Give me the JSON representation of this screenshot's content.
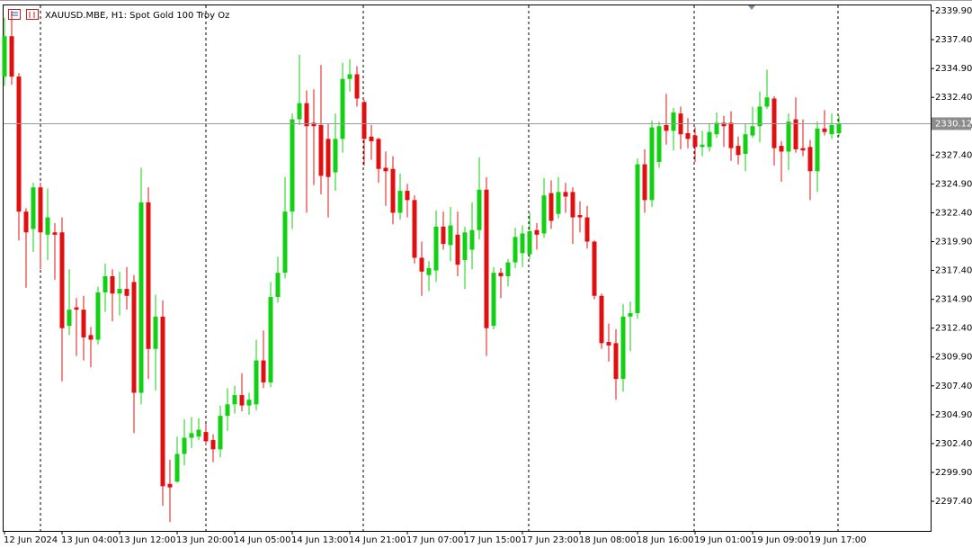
{
  "chart_data": {
    "type": "candlestick",
    "title": "XAUUSD.MBE, H1:  Spot Gold 100 Troy Oz",
    "categories": [
      "12 Jun 2024",
      null,
      null,
      null,
      null,
      null,
      null,
      null,
      "13 Jun 04:00",
      null,
      null,
      null,
      null,
      null,
      null,
      null,
      "13 Jun 12:00",
      null,
      null,
      null,
      null,
      null,
      null,
      null,
      "13 Jun 20:00",
      null,
      null,
      null,
      null,
      null,
      null,
      null,
      "14 Jun 05:00",
      null,
      null,
      null,
      null,
      null,
      null,
      null,
      "14 Jun 13:00",
      null,
      null,
      null,
      null,
      null,
      null,
      null,
      "14 Jun 21:00",
      null,
      null,
      null,
      null,
      null,
      null,
      null,
      "17 Jun 07:00",
      null,
      null,
      null,
      null,
      null,
      null,
      null,
      "17 Jun 15:00",
      null,
      null,
      null,
      null,
      null,
      null,
      null,
      "17 Jun 23:00",
      null,
      null,
      null,
      null,
      null,
      null,
      null,
      "18 Jun 08:00",
      null,
      null,
      null,
      null,
      null,
      null,
      null,
      "18 Jun 16:00",
      null,
      null,
      null,
      null,
      null,
      null,
      null,
      "19 Jun 01:00",
      null,
      null,
      null,
      null,
      null,
      null,
      null,
      "19 Jun 09:00",
      null,
      null,
      null,
      null,
      null,
      null,
      null,
      "19 Jun 17:00",
      null,
      null,
      null,
      null
    ],
    "open": [
      2334.2,
      2337.7,
      2334.2,
      2322.5,
      2321.0,
      2324.6,
      2320.5,
      2320.7,
      2320.7,
      2312.6,
      2314.2,
      2314.0,
      2311.8,
      2311.4,
      2315.5,
      2316.9,
      2315.4,
      2315.8,
      2316.4,
      2306.8,
      2323.3,
      2310.6,
      2313.4,
      2298.9,
      2299.1,
      2301.5,
      2302.9,
      2303.0,
      2303.4,
      2302.7,
      2301.9,
      2304.8,
      2305.8,
      2306.6,
      2305.7,
      2305.8,
      2309.6,
      2307.7,
      2315.1,
      2317.2,
      2322.5,
      2330.5,
      2331.9,
      2330.2,
      2330.0,
      2328.8,
      2325.9,
      2328.8,
      2334.0,
      2334.4,
      2332.0,
      2329.0,
      2328.8,
      2326.3,
      2326.2,
      2322.4,
      2324.3,
      2323.5,
      2318.5,
      2317.0,
      2317.4,
      2321.2,
      2319.6,
      2320.5,
      2318.3,
      2319.2,
      2320.9,
      2324.4,
      2312.6,
      2317.2,
      2316.9,
      2318.1,
      2318.9,
      2318.8,
      2320.9,
      2320.6,
      2324.1,
      2322.3,
      2324.2,
      2324.2,
      2322.2,
      2322.0,
      2319.9,
      2315.2,
      2311.2,
      2311.1,
      2308.0,
      2313.4,
      2313.7,
      2326.6,
      2323.5,
      2326.8,
      2330.0,
      2329.5,
      2331.0,
      2329.3,
      2329.1,
      2328.1,
      2328.1,
      2329.2,
      2330.2,
      2330.2,
      2328.2,
      2327.5,
      2329.1,
      2329.9,
      2331.6,
      2332.3,
      2328.2,
      2327.7,
      2330.5,
      2328.0,
      2328.1,
      2326.0,
      2329.7,
      2329.2,
      2329.3
    ],
    "high": [
      2339.3,
      2339.9,
      2334.5,
      2322.8,
      2325.0,
      2325.0,
      2324.5,
      2321.5,
      2322.0,
      2317.5,
      2315.0,
      2315.2,
      2312.5,
      2316.0,
      2318.0,
      2317.5,
      2317.3,
      2317.7,
      2317.0,
      2326.3,
      2324.6,
      2315.3,
      2314.8,
      2301.0,
      2303.0,
      2304.5,
      2304.7,
      2304.6,
      2304.1,
      2303.2,
      2305.7,
      2307.2,
      2307.4,
      2308.5,
      2306.8,
      2311.4,
      2312.2,
      2316.4,
      2318.6,
      2325.5,
      2331.0,
      2336.1,
      2333.0,
      2333.1,
      2335.2,
      2330.1,
      2331.0,
      2335.4,
      2335.7,
      2335.1,
      2332.2,
      2330.0,
      2328.9,
      2327.7,
      2327.3,
      2325.8,
      2324.9,
      2323.9,
      2319.9,
      2318.2,
      2322.6,
      2322.5,
      2322.9,
      2322.5,
      2321.2,
      2323.3,
      2327.2,
      2325.5,
      2317.7,
      2317.6,
      2318.4,
      2321.1,
      2321.3,
      2322.4,
      2321.5,
      2325.4,
      2325.2,
      2325.5,
      2325.0,
      2324.6,
      2323.4,
      2323.0,
      2320.0,
      2315.4,
      2312.8,
      2312.3,
      2314.5,
      2314.7,
      2327.1,
      2327.9,
      2330.4,
      2330.3,
      2332.7,
      2331.5,
      2331.6,
      2330.6,
      2329.8,
      2329.5,
      2330.1,
      2331.1,
      2330.8,
      2331.2,
      2329.0,
      2330.1,
      2331.6,
      2332.9,
      2334.8,
      2332.5,
      2328.6,
      2331.0,
      2332.4,
      2330.5,
      2328.7,
      2330.3,
      2331.3,
      2331.0,
      2330.8
    ],
    "low": [
      2333.4,
      2333.5,
      2320.0,
      2315.9,
      2319.0,
      2317.5,
      2318.3,
      2316.6,
      2307.8,
      2311.8,
      2310.0,
      2309.6,
      2309.0,
      2311.0,
      2313.8,
      2313.0,
      2313.5,
      2314.0,
      2303.3,
      2305.8,
      2308.0,
      2307.0,
      2297.0,
      2295.6,
      2299.0,
      2300.5,
      2302.0,
      2302.7,
      2302.3,
      2300.8,
      2301.2,
      2303.5,
      2305.0,
      2305.2,
      2304.9,
      2305.3,
      2307.2,
      2307.3,
      2314.6,
      2316.7,
      2321.0,
      2330.0,
      2322.4,
      2324.8,
      2324.0,
      2322.0,
      2324.3,
      2327.6,
      2332.9,
      2331.6,
      2326.5,
      2327.0,
      2325.0,
      2323.0,
      2321.4,
      2321.8,
      2322.0,
      2318.0,
      2315.2,
      2315.6,
      2316.4,
      2319.2,
      2318.2,
      2316.9,
      2315.8,
      2317.5,
      2320.1,
      2310.0,
      2312.3,
      2315.0,
      2316.0,
      2317.6,
      2317.7,
      2318.4,
      2319.2,
      2320.2,
      2321.0,
      2321.9,
      2322.4,
      2319.7,
      2320.7,
      2319.3,
      2314.9,
      2310.6,
      2309.5,
      2306.2,
      2306.9,
      2310.4,
      2313.2,
      2322.4,
      2322.9,
      2326.3,
      2328.3,
      2327.8,
      2327.9,
      2328.0,
      2326.8,
      2327.3,
      2327.7,
      2328.9,
      2328.1,
      2326.9,
      2326.6,
      2326.0,
      2328.9,
      2328.5,
      2331.4,
      2326.5,
      2325.1,
      2326.1,
      2327.6,
      2327.3,
      2323.5,
      2324.2,
      2329.1,
      2328.8,
      2329.0
    ],
    "close": [
      2337.7,
      2334.2,
      2322.5,
      2320.7,
      2324.6,
      2320.7,
      2322.0,
      2320.5,
      2312.4,
      2314.0,
      2314.0,
      2311.6,
      2311.4,
      2315.5,
      2316.9,
      2315.4,
      2315.8,
      2315.2,
      2306.8,
      2323.3,
      2310.6,
      2313.4,
      2298.7,
      2298.6,
      2301.5,
      2302.9,
      2303.3,
      2303.6,
      2302.6,
      2301.9,
      2304.8,
      2305.8,
      2306.6,
      2305.7,
      2306.2,
      2309.6,
      2307.7,
      2315.1,
      2317.2,
      2322.5,
      2330.5,
      2331.9,
      2329.9,
      2329.9,
      2325.6,
      2325.5,
      2328.8,
      2334.0,
      2334.4,
      2332.3,
      2328.8,
      2328.6,
      2326.2,
      2326.0,
      2322.4,
      2324.3,
      2323.5,
      2318.5,
      2317.3,
      2317.6,
      2321.2,
      2319.7,
      2321.3,
      2317.9,
      2320.7,
      2320.9,
      2324.4,
      2312.4,
      2317.2,
      2316.9,
      2318.1,
      2320.3,
      2320.6,
      2320.8,
      2320.5,
      2323.9,
      2321.7,
      2324.2,
      2323.8,
      2322.0,
      2322.0,
      2319.9,
      2315.2,
      2311.1,
      2310.9,
      2308.0,
      2313.4,
      2313.7,
      2326.6,
      2323.5,
      2329.8,
      2329.9,
      2329.5,
      2331.1,
      2329.2,
      2328.8,
      2328.1,
      2328.3,
      2329.4,
      2330.2,
      2329.9,
      2328.0,
      2327.4,
      2329.2,
      2329.9,
      2331.6,
      2332.4,
      2328.0,
      2327.7,
      2330.3,
      2327.9,
      2327.8,
      2326.0,
      2329.7,
      2329.4,
      2330.0,
      2330.12
    ],
    "up_color": "#12d012",
    "down_color": "#e01010",
    "current_price": 2330.12,
    "ylim": [
      2294.83,
      2340.37
    ],
    "yticks": [
      {
        "value": 2339.9,
        "label": "2339.90"
      },
      {
        "value": 2337.4,
        "label": "2337.40"
      },
      {
        "value": 2334.9,
        "label": "2334.90"
      },
      {
        "value": 2332.4,
        "label": "2332.40"
      },
      {
        "value": 2329.9,
        "label": "2329.90"
      },
      {
        "value": 2327.4,
        "label": "2327.40"
      },
      {
        "value": 2324.9,
        "label": "2324.90"
      },
      {
        "value": 2322.4,
        "label": "2322.40"
      },
      {
        "value": 2319.9,
        "label": "2319.90"
      },
      {
        "value": 2317.4,
        "label": "2317.40"
      },
      {
        "value": 2314.9,
        "label": "2314.90"
      },
      {
        "value": 2312.4,
        "label": "2312.40"
      },
      {
        "value": 2309.9,
        "label": "2309.90"
      },
      {
        "value": 2307.4,
        "label": "2307.40"
      },
      {
        "value": 2304.9,
        "label": "2304.90"
      },
      {
        "value": 2302.4,
        "label": "2302.40"
      },
      {
        "value": 2299.9,
        "label": "2299.90"
      },
      {
        "value": 2297.4,
        "label": "2297.40"
      }
    ],
    "grid": false
  }
}
